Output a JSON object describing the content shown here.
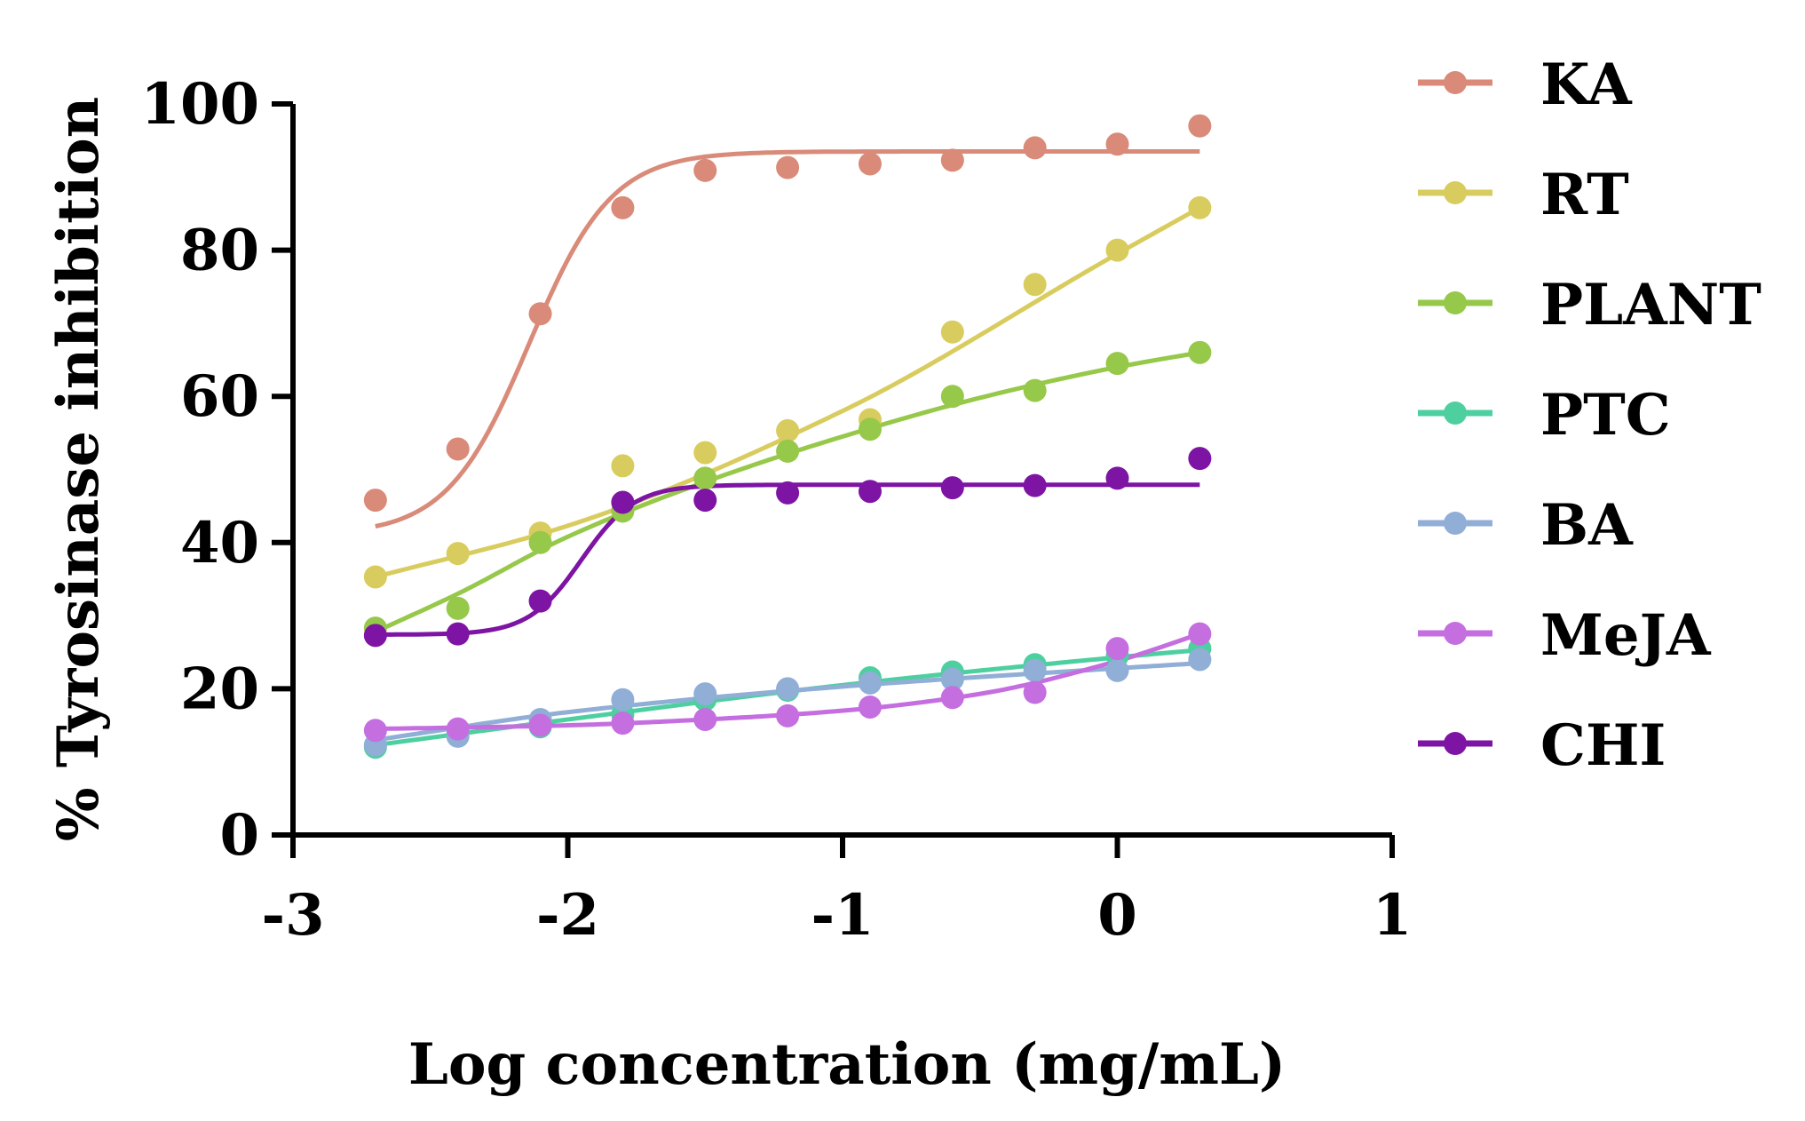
{
  "chart_data": {
    "type": "line",
    "title": "",
    "xlabel": "Log concentration (mg/mL)",
    "ylabel": "% Tyrosinase inhibition",
    "xlim": [
      -3,
      1
    ],
    "ylim": [
      0,
      100
    ],
    "xticks": [
      -3,
      -2,
      -1,
      0,
      1
    ],
    "yticks": [
      0,
      20,
      40,
      60,
      80,
      100
    ],
    "xtick_labels": [
      "-3",
      "-2",
      "-1",
      "0",
      "1"
    ],
    "ytick_labels": [
      "0",
      "20",
      "40",
      "60",
      "80",
      "100"
    ],
    "legend_position": "right",
    "x": [
      -2.7,
      -2.4,
      -2.1,
      -1.8,
      -1.5,
      -1.2,
      -0.9,
      -0.6,
      -0.3,
      0.0,
      0.3
    ],
    "series": [
      {
        "name": "KA",
        "color": "#d98a78",
        "values": [
          45.8,
          52.8,
          71.3,
          85.8,
          90.9,
          91.3,
          91.8,
          92.3,
          94.0,
          94.5,
          97.0
        ],
        "fit": {
          "kind": "sigmoid",
          "bottom": 41.0,
          "top": 93.5,
          "logEC50": -2.14,
          "hill": 2.9
        }
      },
      {
        "name": "RT",
        "color": "#d9cc5e",
        "values": [
          35.3,
          38.5,
          41.3,
          50.5,
          52.3,
          55.3,
          56.8,
          68.8,
          75.3,
          80.0,
          85.8
        ],
        "fit": {
          "kind": "poly",
          "x": [
            -2.7,
            -2.0,
            -1.0,
            0.0,
            0.3
          ],
          "y": [
            35.3,
            42.3,
            58.0,
            79.5,
            85.8
          ]
        }
      },
      {
        "name": "PLANT",
        "color": "#96c84a",
        "values": [
          28.3,
          31.0,
          40.0,
          44.3,
          48.8,
          52.5,
          55.5,
          60.0,
          60.8,
          64.5,
          66.0
        ],
        "fit": {
          "kind": "poly",
          "x": [
            -2.7,
            -2.4,
            -2.0,
            -1.5,
            -1.0,
            -0.5,
            0.0,
            0.3
          ],
          "y": [
            27.8,
            33.0,
            40.8,
            48.3,
            54.5,
            59.8,
            64.0,
            66.0
          ]
        }
      },
      {
        "name": "PTC",
        "color": "#4ecfa0",
        "values": [
          12.0,
          13.8,
          14.8,
          16.5,
          18.5,
          19.8,
          21.5,
          22.3,
          23.3,
          24.5,
          25.5
        ],
        "fit": {
          "kind": "poly",
          "x": [
            -2.7,
            -2.0,
            -1.0,
            0.0,
            0.3
          ],
          "y": [
            12.3,
            15.8,
            20.5,
            24.3,
            25.3
          ]
        }
      },
      {
        "name": "BA",
        "color": "#90aed6",
        "values": [
          12.3,
          13.5,
          15.8,
          18.5,
          19.3,
          20.0,
          20.8,
          21.3,
          22.5,
          22.5,
          24.0
        ],
        "fit": {
          "kind": "poly",
          "x": [
            -2.7,
            -2.0,
            -1.0,
            0.0,
            0.3
          ],
          "y": [
            13.0,
            16.8,
            20.3,
            22.8,
            23.5
          ]
        }
      },
      {
        "name": "MeJA",
        "color": "#c46ee0",
        "values": [
          14.3,
          14.5,
          15.0,
          15.3,
          15.8,
          16.3,
          17.5,
          18.8,
          19.5,
          25.5,
          27.5
        ],
        "fit": {
          "kind": "poly",
          "x": [
            -2.7,
            -2.0,
            -1.5,
            -1.0,
            -0.5,
            0.0,
            0.3
          ],
          "y": [
            14.5,
            15.0,
            15.8,
            17.0,
            19.3,
            23.8,
            27.5
          ]
        }
      },
      {
        "name": "CHI",
        "color": "#7d14a3",
        "values": [
          27.3,
          27.5,
          32.0,
          45.5,
          45.8,
          46.8,
          47.0,
          47.5,
          47.8,
          48.8,
          51.5
        ],
        "fit": {
          "kind": "sigmoid",
          "bottom": 27.4,
          "top": 47.9,
          "logEC50": -1.95,
          "hill": 4.5
        }
      }
    ]
  }
}
